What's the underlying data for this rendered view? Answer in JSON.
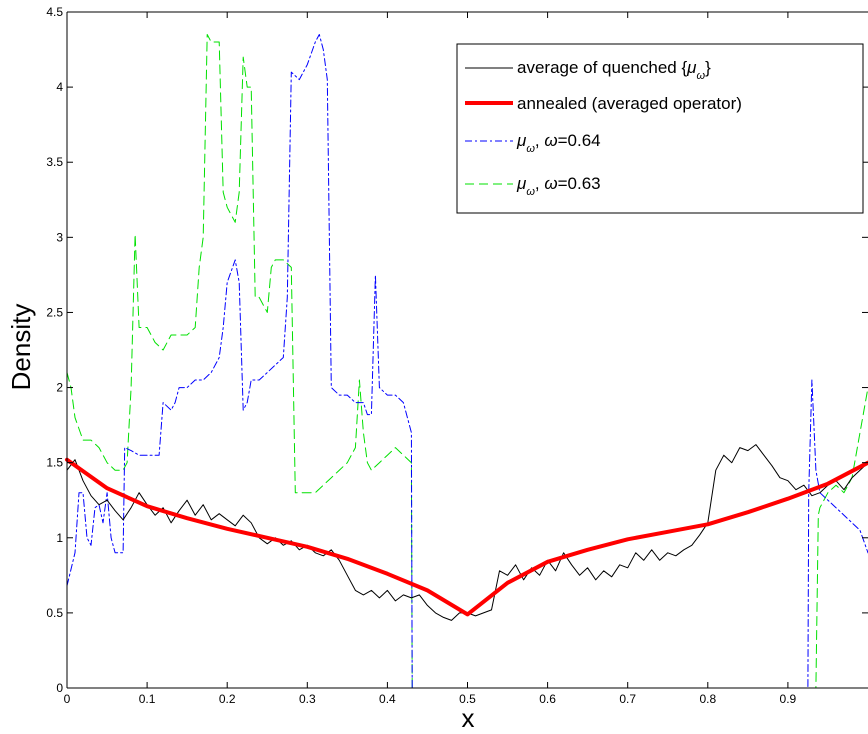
{
  "chart_data": {
    "type": "line",
    "title": "",
    "xlabel": "x",
    "ylabel": "Density",
    "xlim": [
      0,
      1
    ],
    "ylim": [
      0,
      4.5
    ],
    "x_ticks": [
      "0",
      "0.1",
      "0.2",
      "0.3",
      "0.4",
      "0.5",
      "0.6",
      "0.7",
      "0.8",
      "0.9"
    ],
    "y_ticks": [
      "0",
      "0.5",
      "1",
      "1.5",
      "2",
      "2.5",
      "3",
      "3.5",
      "4",
      "4.5"
    ],
    "legend_position": "top-right",
    "legend_labels": {
      "s0_a": "average of quenched {",
      "s0_mu": "μ",
      "s0_w": "ω",
      "s0_b": "}",
      "s1": "annealed (averaged operator)",
      "mu": "μ",
      "w": "ω",
      "s2_comma": ", ",
      "s2_eq": "=0.64",
      "s3_comma": ", ",
      "s3_eq": "=0.63"
    },
    "series": [
      {
        "key": "quenched",
        "color": "#000000",
        "style": "solid",
        "width": 1,
        "points": [
          [
            0,
            1.45
          ],
          [
            0.01,
            1.52
          ],
          [
            0.02,
            1.38
          ],
          [
            0.03,
            1.28
          ],
          [
            0.04,
            1.22
          ],
          [
            0.05,
            1.25
          ],
          [
            0.06,
            1.18
          ],
          [
            0.07,
            1.12
          ],
          [
            0.08,
            1.2
          ],
          [
            0.09,
            1.3
          ],
          [
            0.1,
            1.22
          ],
          [
            0.11,
            1.15
          ],
          [
            0.12,
            1.2
          ],
          [
            0.13,
            1.1
          ],
          [
            0.14,
            1.18
          ],
          [
            0.15,
            1.25
          ],
          [
            0.16,
            1.15
          ],
          [
            0.17,
            1.22
          ],
          [
            0.18,
            1.12
          ],
          [
            0.19,
            1.16
          ],
          [
            0.2,
            1.12
          ],
          [
            0.21,
            1.08
          ],
          [
            0.22,
            1.15
          ],
          [
            0.23,
            1.1
          ],
          [
            0.24,
            1.0
          ],
          [
            0.25,
            0.96
          ],
          [
            0.26,
            1.0
          ],
          [
            0.27,
            0.95
          ],
          [
            0.28,
            0.98
          ],
          [
            0.29,
            0.92
          ],
          [
            0.3,
            0.95
          ],
          [
            0.31,
            0.9
          ],
          [
            0.32,
            0.88
          ],
          [
            0.33,
            0.92
          ],
          [
            0.34,
            0.85
          ],
          [
            0.35,
            0.75
          ],
          [
            0.36,
            0.65
          ],
          [
            0.37,
            0.62
          ],
          [
            0.38,
            0.65
          ],
          [
            0.39,
            0.6
          ],
          [
            0.4,
            0.65
          ],
          [
            0.41,
            0.58
          ],
          [
            0.42,
            0.62
          ],
          [
            0.43,
            0.6
          ],
          [
            0.44,
            0.62
          ],
          [
            0.45,
            0.55
          ],
          [
            0.46,
            0.5
          ],
          [
            0.47,
            0.47
          ],
          [
            0.48,
            0.45
          ],
          [
            0.49,
            0.5
          ],
          [
            0.5,
            0.5
          ],
          [
            0.51,
            0.48
          ],
          [
            0.52,
            0.5
          ],
          [
            0.53,
            0.52
          ],
          [
            0.54,
            0.78
          ],
          [
            0.55,
            0.75
          ],
          [
            0.56,
            0.82
          ],
          [
            0.57,
            0.72
          ],
          [
            0.58,
            0.8
          ],
          [
            0.59,
            0.75
          ],
          [
            0.6,
            0.85
          ],
          [
            0.61,
            0.78
          ],
          [
            0.62,
            0.9
          ],
          [
            0.63,
            0.82
          ],
          [
            0.64,
            0.75
          ],
          [
            0.65,
            0.8
          ],
          [
            0.66,
            0.72
          ],
          [
            0.67,
            0.78
          ],
          [
            0.68,
            0.74
          ],
          [
            0.69,
            0.82
          ],
          [
            0.7,
            0.8
          ],
          [
            0.71,
            0.9
          ],
          [
            0.72,
            0.85
          ],
          [
            0.73,
            0.92
          ],
          [
            0.74,
            0.85
          ],
          [
            0.75,
            0.9
          ],
          [
            0.76,
            0.88
          ],
          [
            0.77,
            0.92
          ],
          [
            0.78,
            0.95
          ],
          [
            0.79,
            1.02
          ],
          [
            0.8,
            1.1
          ],
          [
            0.81,
            1.45
          ],
          [
            0.82,
            1.55
          ],
          [
            0.83,
            1.5
          ],
          [
            0.84,
            1.6
          ],
          [
            0.85,
            1.58
          ],
          [
            0.86,
            1.62
          ],
          [
            0.87,
            1.55
          ],
          [
            0.88,
            1.48
          ],
          [
            0.89,
            1.4
          ],
          [
            0.9,
            1.38
          ],
          [
            0.91,
            1.32
          ],
          [
            0.92,
            1.35
          ],
          [
            0.93,
            1.28
          ],
          [
            0.94,
            1.3
          ],
          [
            0.95,
            1.35
          ],
          [
            0.96,
            1.38
          ],
          [
            0.97,
            1.32
          ],
          [
            0.98,
            1.4
          ],
          [
            0.99,
            1.45
          ],
          [
            1.0,
            1.5
          ]
        ]
      },
      {
        "key": "annealed",
        "color": "#ff0000",
        "style": "solid",
        "width": 4,
        "points": [
          [
            0,
            1.52
          ],
          [
            0.05,
            1.33
          ],
          [
            0.1,
            1.21
          ],
          [
            0.15,
            1.13
          ],
          [
            0.2,
            1.06
          ],
          [
            0.25,
            1.0
          ],
          [
            0.3,
            0.94
          ],
          [
            0.35,
            0.86
          ],
          [
            0.4,
            0.76
          ],
          [
            0.45,
            0.65
          ],
          [
            0.5,
            0.49
          ],
          [
            0.55,
            0.7
          ],
          [
            0.6,
            0.84
          ],
          [
            0.65,
            0.92
          ],
          [
            0.7,
            0.99
          ],
          [
            0.75,
            1.04
          ],
          [
            0.8,
            1.09
          ],
          [
            0.85,
            1.17
          ],
          [
            0.9,
            1.26
          ],
          [
            0.95,
            1.36
          ],
          [
            1.0,
            1.5
          ]
        ]
      },
      {
        "key": "w064",
        "color": "#0000ff",
        "style": "dashdot",
        "width": 1,
        "points": [
          [
            0,
            0.68
          ],
          [
            0.01,
            0.9
          ],
          [
            0.015,
            1.3
          ],
          [
            0.02,
            1.3
          ],
          [
            0.025,
            1.0
          ],
          [
            0.03,
            0.95
          ],
          [
            0.035,
            1.2
          ],
          [
            0.04,
            1.22
          ],
          [
            0.045,
            1.1
          ],
          [
            0.05,
            1.3
          ],
          [
            0.055,
            1.0
          ],
          [
            0.06,
            0.9
          ],
          [
            0.065,
            0.9
          ],
          [
            0.07,
            0.9
          ],
          [
            0.072,
            1.6
          ],
          [
            0.08,
            1.58
          ],
          [
            0.09,
            1.55
          ],
          [
            0.1,
            1.55
          ],
          [
            0.115,
            1.55
          ],
          [
            0.12,
            1.9
          ],
          [
            0.13,
            1.85
          ],
          [
            0.135,
            1.9
          ],
          [
            0.14,
            2.0
          ],
          [
            0.15,
            2.0
          ],
          [
            0.16,
            2.05
          ],
          [
            0.17,
            2.05
          ],
          [
            0.18,
            2.1
          ],
          [
            0.19,
            2.2
          ],
          [
            0.195,
            2.4
          ],
          [
            0.2,
            2.7
          ],
          [
            0.21,
            2.85
          ],
          [
            0.215,
            2.7
          ],
          [
            0.22,
            1.85
          ],
          [
            0.225,
            1.9
          ],
          [
            0.23,
            2.05
          ],
          [
            0.24,
            2.05
          ],
          [
            0.25,
            2.1
          ],
          [
            0.26,
            2.15
          ],
          [
            0.27,
            2.2
          ],
          [
            0.275,
            2.6
          ],
          [
            0.28,
            4.1
          ],
          [
            0.29,
            4.05
          ],
          [
            0.295,
            4.1
          ],
          [
            0.3,
            4.15
          ],
          [
            0.31,
            4.3
          ],
          [
            0.315,
            4.35
          ],
          [
            0.32,
            4.25
          ],
          [
            0.325,
            4.05
          ],
          [
            0.33,
            2.0
          ],
          [
            0.34,
            1.95
          ],
          [
            0.35,
            1.95
          ],
          [
            0.36,
            1.9
          ],
          [
            0.37,
            1.9
          ],
          [
            0.375,
            1.82
          ],
          [
            0.38,
            1.82
          ],
          [
            0.385,
            2.75
          ],
          [
            0.39,
            2.0
          ],
          [
            0.4,
            1.95
          ],
          [
            0.41,
            1.95
          ],
          [
            0.42,
            1.9
          ],
          [
            0.425,
            1.8
          ],
          [
            0.43,
            1.7
          ],
          [
            0.431,
            0
          ],
          [
            0.5,
            0
          ],
          [
            0.6,
            0
          ],
          [
            0.7,
            0
          ],
          [
            0.8,
            0
          ],
          [
            0.9,
            0
          ],
          [
            0.925,
            0
          ],
          [
            0.926,
            1.3
          ],
          [
            0.93,
            2.05
          ],
          [
            0.935,
            1.45
          ],
          [
            0.94,
            1.3
          ],
          [
            0.95,
            1.25
          ],
          [
            0.96,
            1.2
          ],
          [
            0.97,
            1.15
          ],
          [
            0.98,
            1.1
          ],
          [
            0.99,
            1.05
          ],
          [
            1.0,
            0.9
          ]
        ]
      },
      {
        "key": "w063",
        "color": "#00e000",
        "style": "dashed",
        "width": 1,
        "points": [
          [
            0,
            2.1
          ],
          [
            0.005,
            2.0
          ],
          [
            0.01,
            1.8
          ],
          [
            0.02,
            1.65
          ],
          [
            0.03,
            1.65
          ],
          [
            0.04,
            1.6
          ],
          [
            0.05,
            1.5
          ],
          [
            0.06,
            1.45
          ],
          [
            0.07,
            1.45
          ],
          [
            0.075,
            1.5
          ],
          [
            0.08,
            2.0
          ],
          [
            0.085,
            3.02
          ],
          [
            0.09,
            2.4
          ],
          [
            0.1,
            2.4
          ],
          [
            0.11,
            2.3
          ],
          [
            0.12,
            2.25
          ],
          [
            0.13,
            2.35
          ],
          [
            0.14,
            2.35
          ],
          [
            0.15,
            2.35
          ],
          [
            0.16,
            2.4
          ],
          [
            0.165,
            2.8
          ],
          [
            0.17,
            3.0
          ],
          [
            0.175,
            4.35
          ],
          [
            0.18,
            4.3
          ],
          [
            0.185,
            4.3
          ],
          [
            0.19,
            4.3
          ],
          [
            0.195,
            3.3
          ],
          [
            0.2,
            3.2
          ],
          [
            0.21,
            3.1
          ],
          [
            0.215,
            3.3
          ],
          [
            0.22,
            4.2
          ],
          [
            0.225,
            4.0
          ],
          [
            0.23,
            4.0
          ],
          [
            0.235,
            2.6
          ],
          [
            0.24,
            2.6
          ],
          [
            0.25,
            2.5
          ],
          [
            0.255,
            2.8
          ],
          [
            0.26,
            2.85
          ],
          [
            0.27,
            2.85
          ],
          [
            0.28,
            2.8
          ],
          [
            0.285,
            1.3
          ],
          [
            0.29,
            1.3
          ],
          [
            0.3,
            1.3
          ],
          [
            0.31,
            1.3
          ],
          [
            0.32,
            1.35
          ],
          [
            0.33,
            1.4
          ],
          [
            0.34,
            1.45
          ],
          [
            0.35,
            1.5
          ],
          [
            0.36,
            1.6
          ],
          [
            0.365,
            2.05
          ],
          [
            0.37,
            1.7
          ],
          [
            0.375,
            1.5
          ],
          [
            0.38,
            1.45
          ],
          [
            0.39,
            1.5
          ],
          [
            0.4,
            1.55
          ],
          [
            0.41,
            1.6
          ],
          [
            0.42,
            1.55
          ],
          [
            0.43,
            1.5
          ],
          [
            0.431,
            0
          ],
          [
            0.5,
            0
          ],
          [
            0.6,
            0
          ],
          [
            0.7,
            0
          ],
          [
            0.8,
            0
          ],
          [
            0.9,
            0
          ],
          [
            0.93,
            0
          ],
          [
            0.935,
            0
          ],
          [
            0.938,
            1.15
          ],
          [
            0.94,
            1.2
          ],
          [
            0.95,
            1.3
          ],
          [
            0.96,
            1.35
          ],
          [
            0.97,
            1.3
          ],
          [
            0.98,
            1.4
          ],
          [
            0.99,
            1.7
          ],
          [
            1.0,
            2.0
          ]
        ]
      }
    ]
  }
}
